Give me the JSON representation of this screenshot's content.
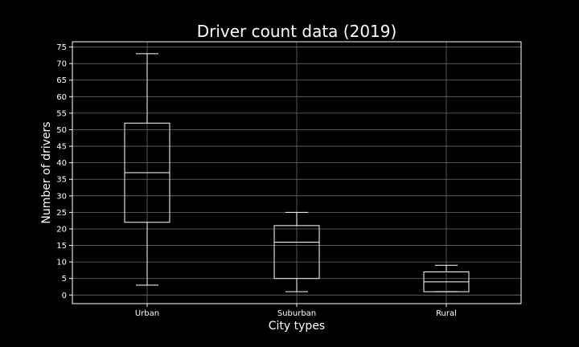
{
  "chart_data": {
    "type": "box",
    "title": "Driver count data (2019)",
    "xlabel": "City types",
    "ylabel": "Number of drivers",
    "categories": [
      "Urban",
      "Suburban",
      "Rural"
    ],
    "boxes": [
      {
        "category": "Urban",
        "min": 3,
        "q1": 22,
        "median": 37,
        "q3": 52,
        "max": 73
      },
      {
        "category": "Suburban",
        "min": 1,
        "q1": 5,
        "median": 16,
        "q3": 21,
        "max": 25
      },
      {
        "category": "Rural",
        "min": 1,
        "q1": 1,
        "median": 4,
        "q3": 7,
        "max": 9
      }
    ],
    "ylim": [
      -2.6,
      76.6
    ],
    "yticks": [
      0,
      5,
      10,
      15,
      20,
      25,
      30,
      35,
      40,
      45,
      50,
      55,
      60,
      65,
      70,
      75
    ],
    "grid": true,
    "colors": {
      "background": "#000000",
      "foreground": "#ffffff",
      "grid": "#6b6b6b"
    }
  }
}
